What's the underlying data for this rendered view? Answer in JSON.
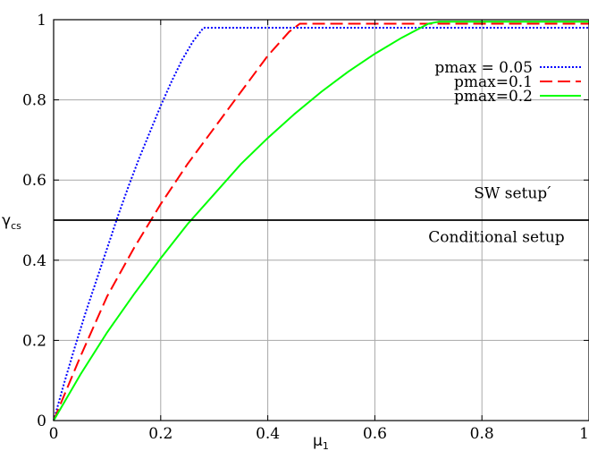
{
  "chart_data": {
    "type": "line",
    "title": "",
    "xlabel": "μ",
    "xlabel_sub": "1",
    "ylabel": "γ",
    "ylabel_sub": "cs",
    "xlim": [
      0,
      1
    ],
    "ylim": [
      0,
      1
    ],
    "xticks": [
      0,
      0.2,
      0.4,
      0.6,
      0.8,
      1
    ],
    "xtick_labels": [
      "0",
      "0.2",
      "0.4",
      "0.6",
      "0.8",
      "1"
    ],
    "yticks": [
      0,
      0.2,
      0.4,
      0.6,
      0.8,
      1
    ],
    "ytick_labels": [
      "0",
      "0.2",
      "0.4",
      "0.6",
      "0.8",
      "1"
    ],
    "grid": true,
    "legend_position": "top-right",
    "series": [
      {
        "name": "pmax = 0.05",
        "color": "#0000ff",
        "style": "dotted",
        "x": [
          0,
          0.02,
          0.04,
          0.06,
          0.08,
          0.1,
          0.12,
          0.14,
          0.16,
          0.18,
          0.2,
          0.22,
          0.24,
          0.26,
          0.28,
          1.0
        ],
        "y": [
          0,
          0.095,
          0.185,
          0.27,
          0.35,
          0.43,
          0.51,
          0.585,
          0.655,
          0.72,
          0.785,
          0.845,
          0.9,
          0.945,
          0.98,
          0.98
        ]
      },
      {
        "name": "pmax=0.1",
        "color": "#ff0000",
        "style": "dashed",
        "x": [
          0,
          0.05,
          0.1,
          0.15,
          0.2,
          0.25,
          0.3,
          0.35,
          0.4,
          0.44,
          0.46,
          1.0
        ],
        "y": [
          0,
          0.16,
          0.31,
          0.43,
          0.54,
          0.64,
          0.73,
          0.82,
          0.91,
          0.97,
          0.99,
          0.99
        ]
      },
      {
        "name": "pmax=0.2",
        "color": "#00ff00",
        "style": "solid",
        "x": [
          0,
          0.05,
          0.1,
          0.15,
          0.2,
          0.25,
          0.3,
          0.35,
          0.4,
          0.45,
          0.5,
          0.55,
          0.6,
          0.65,
          0.7,
          0.72,
          1.0
        ],
        "y": [
          0,
          0.115,
          0.22,
          0.315,
          0.405,
          0.49,
          0.565,
          0.64,
          0.705,
          0.765,
          0.82,
          0.87,
          0.915,
          0.955,
          0.99,
          0.995,
          0.995
        ]
      },
      {
        "name": "",
        "color": "#000000",
        "style": "solid",
        "x": [
          0,
          1
        ],
        "y": [
          0.5,
          0.5
        ]
      }
    ],
    "annotations": [
      {
        "text": "SW setup ́",
        "x": 0.785,
        "y": 0.555
      },
      {
        "text": "Conditional setup",
        "x": 0.7,
        "y": 0.445
      }
    ]
  }
}
